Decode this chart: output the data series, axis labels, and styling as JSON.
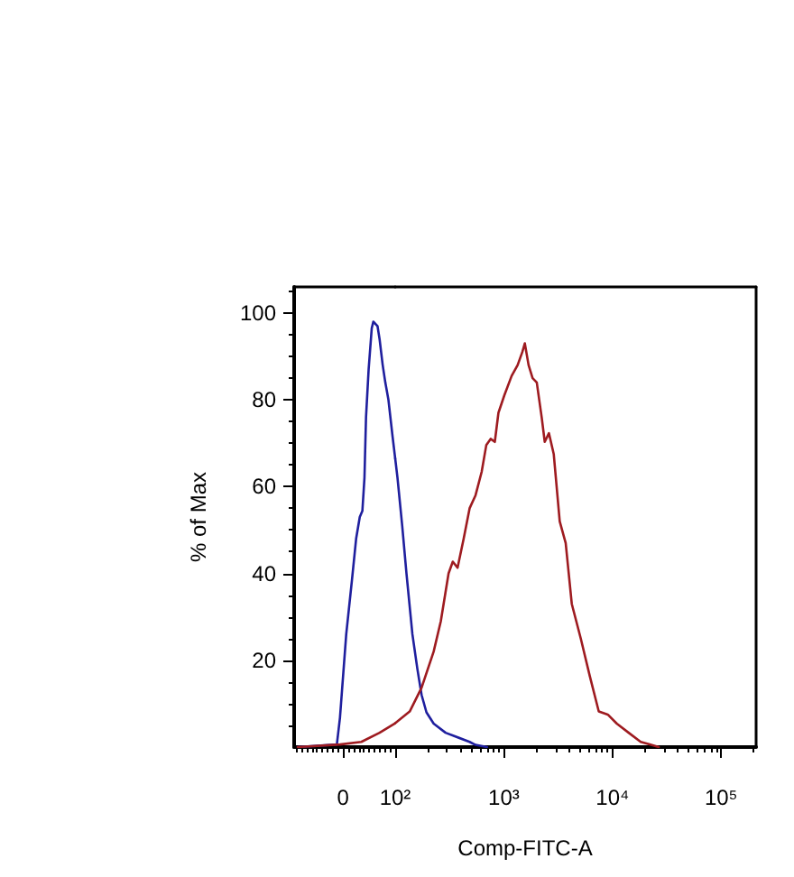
{
  "chart_data": [
    {
      "type": "line",
      "ylabel": "% of Max",
      "grid": false,
      "xlim": [
        -94,
        100
      ],
      "ylim": [
        0,
        106
      ],
      "xticks": [
        {
          "value": -90,
          "label": null
        },
        {
          "value": -80,
          "label": null
        },
        {
          "value": -70,
          "label": null
        },
        {
          "value": -60,
          "label": null
        },
        {
          "value": -50,
          "label": null
        },
        {
          "value": -40,
          "label": null
        },
        {
          "value": -30,
          "label": null
        },
        {
          "value": -20,
          "label": null
        },
        {
          "value": -10,
          "label": null
        },
        0,
        {
          "value": 10,
          "label": null
        },
        {
          "value": 20,
          "label": null
        },
        {
          "value": 30,
          "label": null
        },
        {
          "value": 40,
          "label": null
        },
        {
          "value": 50,
          "label": null
        },
        {
          "value": 60,
          "label": null
        },
        {
          "value": 70,
          "label": null
        },
        {
          "value": 80,
          "label": null
        },
        {
          "value": 90,
          "label": null
        },
        {
          "value": 100,
          "label": "10²"
        }
      ],
      "yticks": [
        {
          "value": 5,
          "label": null
        },
        {
          "value": 10,
          "label": null
        },
        {
          "value": 15,
          "label": null
        },
        20,
        {
          "value": 25,
          "label": null
        },
        {
          "value": 30,
          "label": null
        },
        {
          "value": 35,
          "label": null
        },
        40,
        {
          "value": 45,
          "label": null
        },
        {
          "value": 50,
          "label": null
        },
        {
          "value": 55,
          "label": null
        },
        60,
        {
          "value": 65,
          "label": null
        },
        {
          "value": 70,
          "label": null
        },
        {
          "value": 75,
          "label": null
        },
        80,
        {
          "value": 85,
          "label": null
        },
        {
          "value": 90,
          "label": null
        },
        {
          "value": 95,
          "label": null
        },
        100,
        {
          "value": 105,
          "label": null
        }
      ],
      "series": [
        {
          "color": "#1f1f9e",
          "x": [
            -87,
            -12,
            -6,
            6,
            17,
            25,
            32,
            37,
            41,
            44,
            49,
            55,
            58,
            66,
            70,
            76,
            81,
            87,
            95,
            100
          ],
          "values": [
            0,
            0.6,
            6.8,
            26,
            38.5,
            48,
            53,
            54.4,
            62,
            76,
            87,
            96.5,
            98,
            97,
            94,
            88,
            84,
            80,
            71.5,
            66.5
          ]
        },
        {
          "color": "#9e1b20",
          "x": [
            -87,
            -6,
            35,
            70,
            100
          ],
          "values": [
            0,
            0.6,
            1.2,
            3.3,
            5.5
          ]
        }
      ]
    },
    {
      "type": "line",
      "xlabel": "Comp-FITC-A",
      "log": "x",
      "grid": false,
      "tick_labels": "x",
      "xlim": [
        100,
        210000
      ],
      "ylim": [
        0,
        106
      ],
      "xticks": [
        {
          "value": 100,
          "label": null
        },
        {
          "value": 200,
          "label": null
        },
        {
          "value": 300,
          "label": null
        },
        {
          "value": 400,
          "label": null
        },
        {
          "value": 500,
          "label": null
        },
        {
          "value": 600,
          "label": null
        },
        {
          "value": 700,
          "label": null
        },
        {
          "value": 800,
          "label": null
        },
        {
          "value": 900,
          "label": null
        },
        {
          "value": 1000,
          "label": "10³"
        },
        {
          "value": 2000,
          "label": null
        },
        {
          "value": 3000,
          "label": null
        },
        {
          "value": 4000,
          "label": null
        },
        {
          "value": 5000,
          "label": null
        },
        {
          "value": 6000,
          "label": null
        },
        {
          "value": 7000,
          "label": null
        },
        {
          "value": 8000,
          "label": null
        },
        {
          "value": 9000,
          "label": null
        },
        {
          "value": 10000,
          "label": "10⁴"
        },
        {
          "value": 20000,
          "label": null
        },
        {
          "value": 30000,
          "label": null
        },
        {
          "value": 40000,
          "label": null
        },
        {
          "value": 50000,
          "label": null
        },
        {
          "value": 60000,
          "label": null
        },
        {
          "value": 70000,
          "label": null
        },
        {
          "value": 80000,
          "label": null
        },
        {
          "value": 90000,
          "label": null
        },
        {
          "value": 100000,
          "label": "10⁵"
        },
        {
          "value": 200000,
          "label": null
        }
      ],
      "series": [
        {
          "color": "#1f1f9e",
          "x": [
            100,
            105,
            116,
            127,
            144,
            160,
            175,
            194,
            226,
            291,
            484,
            549,
            700
          ],
          "values": [
            66.5,
            62,
            51,
            40,
            26,
            18,
            12,
            8,
            5.4,
            3.3,
            1.2,
            0.5,
            0
          ]
        },
        {
          "color": "#9e1b20",
          "x": [
            100,
            136,
            175,
            226,
            263,
            310,
            339,
            375,
            427,
            484,
            549,
            625,
            690,
            756,
            826,
            892,
            1010,
            1180,
            1340,
            1480,
            1560,
            1690,
            1840,
            2010,
            2230,
            2380,
            2600,
            2880,
            3270,
            3710,
            4220,
            5110,
            6180,
            7480,
            9050,
            10960,
            14100,
            18200,
            22000,
            26700
          ],
          "values": [
            5.5,
            8.2,
            13.7,
            22,
            29,
            40,
            42.7,
            41.3,
            48,
            55,
            58,
            63.4,
            69.6,
            71,
            70.3,
            77,
            81,
            85.5,
            88,
            91,
            93,
            88,
            85,
            84,
            76,
            70.3,
            72.3,
            67.5,
            52,
            47,
            33,
            25,
            16.4,
            8.2,
            7.5,
            5.4,
            3.3,
            1.2,
            0.6,
            0
          ]
        }
      ]
    }
  ]
}
